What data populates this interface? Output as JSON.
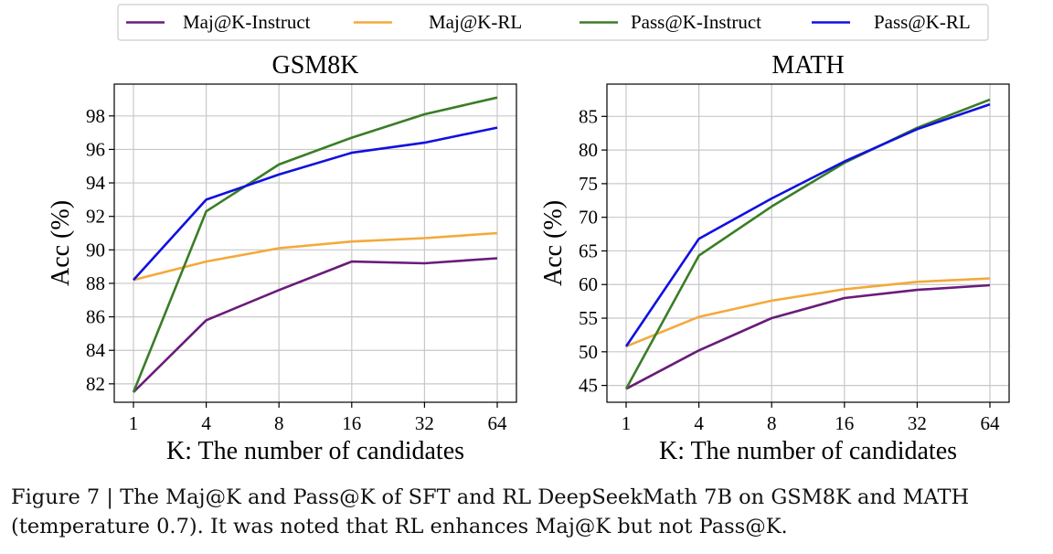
{
  "chart_data": [
    {
      "type": "line",
      "title": "GSM8K",
      "xlabel": "K: The number of candidates",
      "ylabel": "Acc (%)",
      "categories": [
        "1",
        "4",
        "8",
        "16",
        "32",
        "64"
      ],
      "yticks": [
        "82",
        "84",
        "86",
        "88",
        "90",
        "92",
        "94",
        "96",
        "98"
      ],
      "ylim": [
        80.9,
        99.9
      ],
      "grid": true,
      "series": [
        {
          "name": "Maj@K-Instruct",
          "color": "#6a1b7a",
          "values": [
            81.5,
            85.8,
            87.6,
            89.3,
            89.2,
            89.5
          ]
        },
        {
          "name": "Maj@K-RL",
          "color": "#f4a93a",
          "values": [
            88.2,
            89.3,
            90.1,
            90.5,
            90.7,
            91.0
          ]
        },
        {
          "name": "Pass@K-Instruct",
          "color": "#3a7d27",
          "values": [
            81.5,
            92.3,
            95.1,
            96.7,
            98.1,
            99.1
          ]
        },
        {
          "name": "Pass@K-RL",
          "color": "#1010e0",
          "values": [
            88.2,
            93.0,
            94.5,
            95.8,
            96.4,
            97.3
          ]
        }
      ]
    },
    {
      "type": "line",
      "title": "MATH",
      "xlabel": "K: The number of candidates",
      "ylabel": "Acc (%)",
      "categories": [
        "1",
        "4",
        "8",
        "16",
        "32",
        "64"
      ],
      "yticks": [
        "45",
        "50",
        "55",
        "60",
        "65",
        "70",
        "75",
        "80",
        "85"
      ],
      "ylim": [
        42.5,
        89.8
      ],
      "grid": true,
      "series": [
        {
          "name": "Maj@K-Instruct",
          "color": "#6a1b7a",
          "values": [
            44.5,
            50.2,
            55.0,
            58.0,
            59.2,
            59.9
          ]
        },
        {
          "name": "Maj@K-RL",
          "color": "#f4a93a",
          "values": [
            50.8,
            55.2,
            57.6,
            59.3,
            60.4,
            60.9
          ]
        },
        {
          "name": "Pass@K-Instruct",
          "color": "#3a7d27",
          "values": [
            44.5,
            64.3,
            71.6,
            78.1,
            83.3,
            87.5
          ]
        },
        {
          "name": "Pass@K-RL",
          "color": "#1010e0",
          "values": [
            50.8,
            66.8,
            72.8,
            78.3,
            83.1,
            86.8
          ]
        }
      ]
    }
  ],
  "legend": [
    {
      "label": "Maj@K-Instruct",
      "color": "#6a1b7a"
    },
    {
      "label": "Maj@K-RL",
      "color": "#f4a93a"
    },
    {
      "label": "Pass@K-Instruct",
      "color": "#3a7d27"
    },
    {
      "label": "Pass@K-RL",
      "color": "#1010e0"
    }
  ],
  "caption": {
    "line1": "Figure 7 | The Maj@K and Pass@K of SFT and RL DeepSeekMath 7B on GSM8K and MATH",
    "line2": "(temperature 0.7). It was noted that RL enhances Maj@K but not Pass@K."
  }
}
